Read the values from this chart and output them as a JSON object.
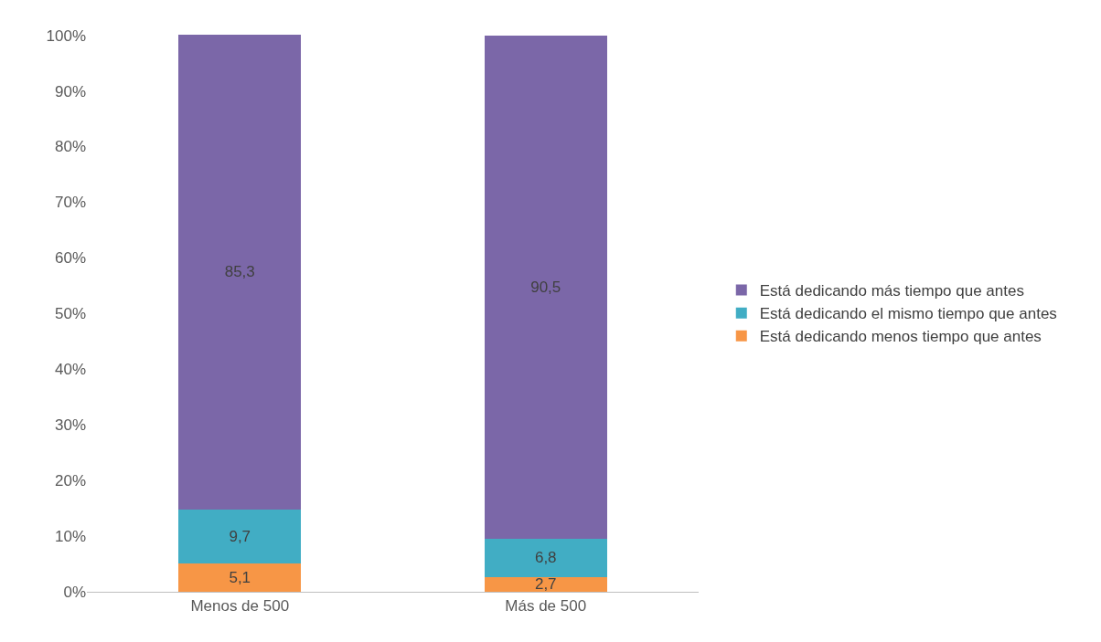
{
  "chart_data": {
    "type": "bar",
    "stacked": true,
    "categories": [
      "Menos de 500",
      "Más de 500"
    ],
    "series": [
      {
        "name": "Está dedicando menos tiempo que antes",
        "color": "#f79646",
        "values": [
          5.1,
          2.7
        ],
        "value_labels": [
          "5,1",
          "2,7"
        ]
      },
      {
        "name": "Está dedicando el mismo tiempo que antes",
        "color": "#41adc4",
        "values": [
          9.7,
          6.8
        ],
        "value_labels": [
          "9,7",
          "6,8"
        ]
      },
      {
        "name": "Está dedicando más tiempo que antes",
        "color": "#7b67a8",
        "values": [
          85.3,
          90.5
        ],
        "value_labels": [
          "85,3",
          "90,5"
        ]
      }
    ],
    "ylim": [
      0,
      100.1
    ],
    "yticks": [
      {
        "value": 0,
        "label": "0%"
      },
      {
        "value": 10,
        "label": "10%"
      },
      {
        "value": 20,
        "label": "20%"
      },
      {
        "value": 30,
        "label": "30%"
      },
      {
        "value": 40,
        "label": "40%"
      },
      {
        "value": 50,
        "label": "50%"
      },
      {
        "value": 60,
        "label": "60%"
      },
      {
        "value": 70,
        "label": "70%"
      },
      {
        "value": 80,
        "label": "80%"
      },
      {
        "value": 90,
        "label": "90%"
      },
      {
        "value": 100,
        "label": "100%"
      }
    ],
    "legend": "right",
    "grid": false
  }
}
